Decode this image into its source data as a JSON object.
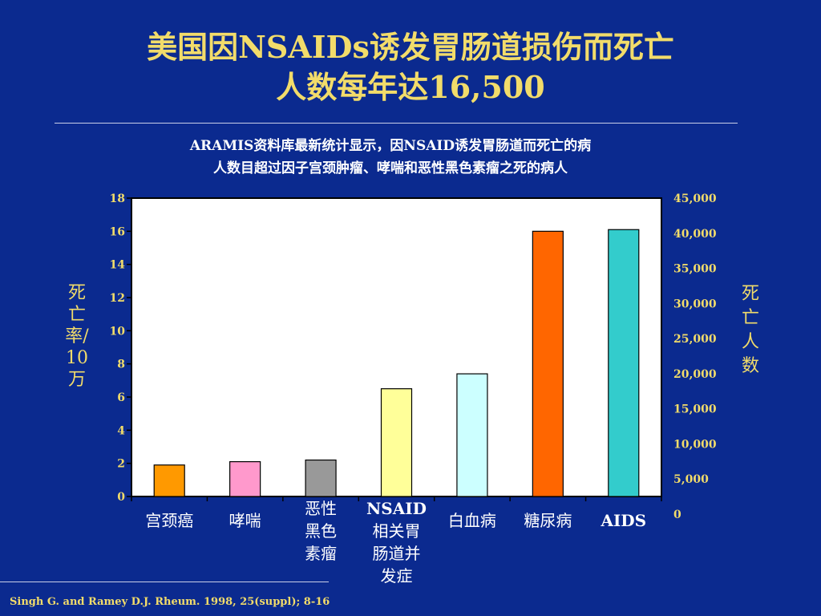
{
  "slide": {
    "title_line1": "美国因NSAIDs诱发胃肠道损伤而死亡",
    "title_line2": "人数每年达16,500",
    "subtitle_line1": "ARAMIS资料库最新统计显示，因NSAID诱发胃肠道而死亡的病",
    "subtitle_line2": "人数目超过因子宫颈肿瘤、哮喘和恶性黑色素瘤之死的病人",
    "citation": "Singh G. and Ramey D.J. Rheum. 1998, 25(suppl); 8-16"
  },
  "colors": {
    "background": "#0b2a8f",
    "title": "#f2dc6a",
    "text": "#ffffff"
  },
  "chart_data": {
    "type": "bar",
    "categories": [
      [
        "宫颈癌"
      ],
      [
        "哮喘"
      ],
      [
        "恶性",
        "黑色",
        "素瘤"
      ],
      [
        "NSAID",
        "相关胃",
        "肠道并",
        "发症"
      ],
      [
        "白血病"
      ],
      [
        "糖尿病"
      ],
      [
        "AIDS"
      ]
    ],
    "values": [
      1.9,
      2.1,
      2.2,
      6.5,
      7.4,
      16.0,
      16.1
    ],
    "bar_colors": [
      "#ff9900",
      "#ff99cc",
      "#999999",
      "#ffff99",
      "#ccffff",
      "#ff6600",
      "#33cccc"
    ],
    "ylabel_left": [
      "死",
      "亡",
      "率/",
      "10",
      "万"
    ],
    "ylabel_right": [
      "死",
      "亡",
      "人",
      "数"
    ],
    "ylim_left": [
      0,
      18
    ],
    "yticks_left": [
      "0",
      "2",
      "4",
      "6",
      "8",
      "10",
      "12",
      "14",
      "16",
      "18"
    ],
    "ylim_right": [
      0,
      45000
    ],
    "yticks_right": [
      "0",
      "5,000",
      "10,000",
      "15,000",
      "20,000",
      "25,000",
      "30,000",
      "35,000",
      "40,000",
      "45,000"
    ],
    "plot_background": "#ffffff",
    "grid": false
  }
}
